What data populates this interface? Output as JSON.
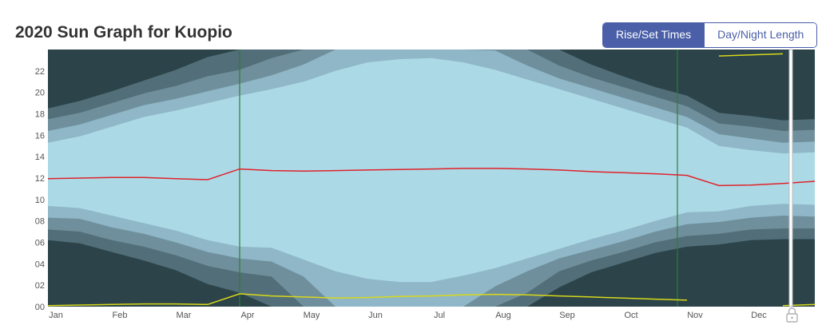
{
  "page": {
    "title": "2020 Sun Graph for Kuopio",
    "toggle": {
      "rise_set": "Rise/Set Times",
      "day_night": "Day/Night Length"
    }
  },
  "icons": {
    "lock": "lock-icon"
  },
  "colors": {
    "night": "#2b4349",
    "astronomical": "#526e78",
    "nautical": "#6f8f9c",
    "civil": "#8fb7c7",
    "day": "#acd9e6",
    "solar_noon": "#e0232a",
    "moon": "#d8d81a",
    "dst_line": "#2e7d32",
    "accent": "#4a5fa8"
  },
  "chart_data": {
    "type": "area",
    "title": "2020 Sun Graph for Kuopio",
    "x_tick_labels": [
      "Jan",
      "Feb",
      "Mar",
      "Apr",
      "May",
      "Jun",
      "Jul",
      "Aug",
      "Sep",
      "Oct",
      "Nov",
      "Dec"
    ],
    "y_tick_labels": [
      "00",
      "02",
      "04",
      "06",
      "08",
      "10",
      "12",
      "14",
      "16",
      "18",
      "20",
      "22"
    ],
    "ylim": [
      0,
      24
    ],
    "x_unit": "month",
    "dst_transitions": [
      3.0,
      9.85
    ],
    "months": [
      0,
      0.5,
      1,
      1.5,
      2,
      2.5,
      3,
      3.5,
      4,
      4.5,
      5,
      5.5,
      6,
      6.5,
      7,
      7.5,
      8,
      8.5,
      9,
      9.5,
      10,
      10.5,
      11,
      11.5,
      12
    ],
    "series": [
      {
        "name": "sunrise",
        "values": [
          9.4,
          9.2,
          8.5,
          7.8,
          7.1,
          6.2,
          5.6,
          5.5,
          4.4,
          3.3,
          2.6,
          2.3,
          2.3,
          2.9,
          3.6,
          4.5,
          5.4,
          6.3,
          7.1,
          8.0,
          8.8,
          8.9,
          9.4,
          9.6,
          9.5
        ]
      },
      {
        "name": "sunset",
        "values": [
          15.3,
          15.9,
          16.8,
          17.7,
          18.3,
          19.0,
          19.7,
          20.3,
          21.0,
          22.0,
          22.8,
          23.1,
          23.2,
          22.8,
          22.1,
          21.2,
          20.3,
          19.4,
          18.5,
          17.6,
          16.7,
          15.0,
          14.6,
          14.3,
          14.4
        ]
      },
      {
        "name": "civil_dawn",
        "values": [
          8.3,
          8.2,
          7.4,
          6.8,
          6.0,
          5.1,
          4.5,
          4.2,
          2.8,
          0,
          0,
          0,
          0,
          0,
          1.9,
          3.3,
          4.5,
          5.3,
          6.1,
          7.0,
          7.7,
          7.9,
          8.3,
          8.5,
          8.4
        ]
      },
      {
        "name": "civil_dusk",
        "values": [
          16.4,
          17.0,
          17.9,
          18.8,
          19.4,
          20.1,
          20.8,
          21.6,
          22.6,
          24,
          24,
          24,
          24,
          24,
          23.9,
          22.5,
          21.3,
          20.4,
          19.5,
          18.6,
          17.7,
          16.1,
          15.7,
          15.3,
          15.4
        ]
      },
      {
        "name": "nautical_dawn",
        "values": [
          7.2,
          7.0,
          6.2,
          5.6,
          4.8,
          3.8,
          3.2,
          2.8,
          0,
          0,
          0,
          0,
          0,
          0,
          0,
          1.3,
          3.3,
          4.3,
          5.1,
          6.0,
          6.6,
          6.8,
          7.2,
          7.3,
          7.3
        ]
      },
      {
        "name": "nautical_dusk",
        "values": [
          17.5,
          18.1,
          19.0,
          19.9,
          20.6,
          21.5,
          22.1,
          23.2,
          24,
          24,
          24,
          24,
          24,
          24,
          24,
          24,
          22.5,
          21.4,
          20.5,
          19.6,
          18.7,
          17.1,
          16.8,
          16.4,
          16.5
        ]
      },
      {
        "name": "astronomical_dawn",
        "values": [
          6.2,
          5.9,
          5.1,
          4.3,
          3.4,
          2.1,
          1.3,
          0,
          0,
          0,
          0,
          0,
          0,
          0,
          0,
          0,
          1.8,
          3.2,
          4.1,
          5.0,
          5.6,
          5.8,
          6.2,
          6.3,
          6.3
        ]
      },
      {
        "name": "astronomical_dusk",
        "values": [
          18.5,
          19.2,
          20.1,
          21.1,
          22.1,
          23.3,
          24,
          24,
          24,
          24,
          24,
          24,
          24,
          24,
          24,
          24,
          24,
          22.6,
          21.5,
          20.5,
          19.7,
          18.1,
          17.8,
          17.4,
          17.5
        ]
      },
      {
        "name": "solar_noon",
        "values": [
          11.95,
          12.0,
          12.05,
          12.05,
          11.95,
          11.85,
          12.85,
          12.7,
          12.65,
          12.7,
          12.75,
          12.8,
          12.85,
          12.9,
          12.9,
          12.85,
          12.75,
          12.6,
          12.5,
          12.4,
          12.25,
          11.3,
          11.35,
          11.5,
          11.7
        ]
      },
      {
        "name": "moon_low",
        "values": [
          0.1,
          0.15,
          0.2,
          0.25,
          0.25,
          0.2,
          1.2,
          1.0,
          0.9,
          0.8,
          0.85,
          0.95,
          1.0,
          1.1,
          1.15,
          1.1,
          1.0,
          0.9,
          0.8,
          0.7,
          0.6,
          null,
          null,
          0.1,
          0.2
        ]
      },
      {
        "name": "moon_high",
        "values": [
          null,
          null,
          null,
          null,
          null,
          null,
          null,
          null,
          null,
          null,
          null,
          null,
          null,
          null,
          null,
          null,
          null,
          null,
          null,
          null,
          null,
          23.4,
          23.5,
          23.6,
          null
        ]
      }
    ]
  }
}
